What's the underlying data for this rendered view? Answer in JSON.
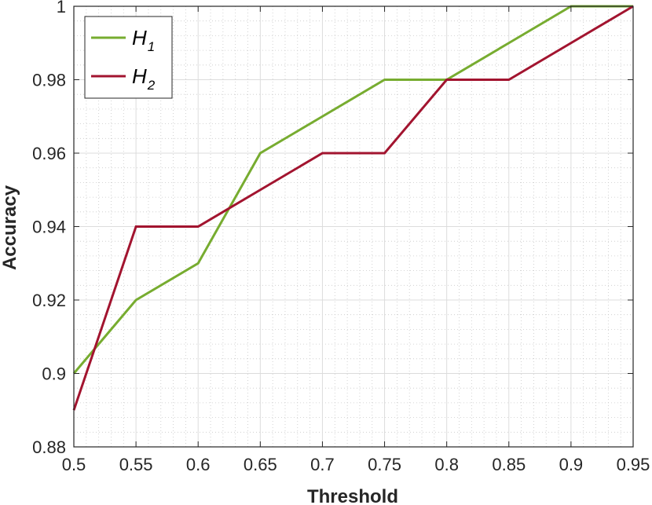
{
  "chart_data": {
    "type": "line",
    "xlabel": "Threshold",
    "ylabel": "Accuracy",
    "xlim": [
      0.5,
      0.95
    ],
    "ylim": [
      0.88,
      1.0
    ],
    "x_ticks": [
      "0.5",
      "0.55",
      "0.6",
      "0.65",
      "0.7",
      "0.75",
      "0.8",
      "0.85",
      "0.9",
      "0.95"
    ],
    "y_ticks": [
      "0.88",
      "0.9",
      "0.92",
      "0.94",
      "0.96",
      "0.98",
      "1"
    ],
    "grid": true,
    "minor_grid": true,
    "legend_position": "top-left",
    "x": [
      0.5,
      0.55,
      0.6,
      0.65,
      0.7,
      0.75,
      0.8,
      0.85,
      0.9,
      0.95
    ],
    "series": [
      {
        "name": "H",
        "subscript": "1",
        "color": "#77ac30",
        "values": [
          0.9,
          0.92,
          0.93,
          0.96,
          0.97,
          0.98,
          0.98,
          0.99,
          1.0,
          1.0
        ]
      },
      {
        "name": "H",
        "subscript": "2",
        "color": "#a2142f",
        "values": [
          0.89,
          0.94,
          0.94,
          0.95,
          0.96,
          0.96,
          0.98,
          0.98,
          0.99,
          1.0
        ]
      }
    ]
  }
}
